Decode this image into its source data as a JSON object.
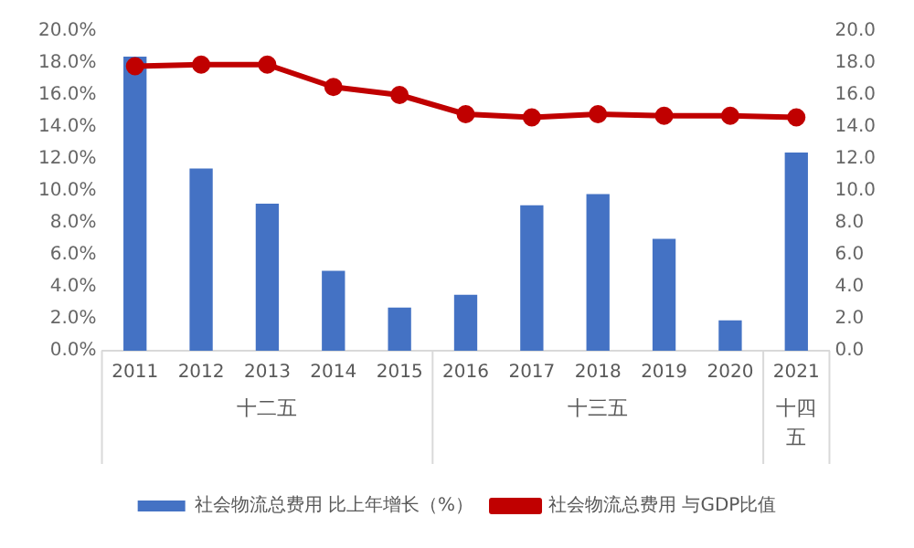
{
  "chart_data": {
    "type": "bar",
    "categories": [
      "2011",
      "2012",
      "2013",
      "2014",
      "2015",
      "2016",
      "2017",
      "2018",
      "2019",
      "2020",
      "2021"
    ],
    "series": [
      {
        "name": "社会物流总费用 比上年增长（%）",
        "color": "#4472c4",
        "values": [
          18.4,
          11.4,
          9.2,
          5.0,
          2.7,
          3.5,
          9.1,
          9.8,
          7.0,
          1.9,
          12.4
        ]
      },
      {
        "name": "社会物流总费用 与GDP比值",
        "type": "line",
        "axis": "y2",
        "color": "#c00000",
        "marker": "circle",
        "values": [
          17.8,
          17.9,
          17.9,
          16.5,
          16.0,
          14.8,
          14.6,
          14.8,
          14.7,
          14.7,
          14.6
        ]
      }
    ],
    "ylim": [
      0,
      20
    ],
    "yticks": [
      {
        "value": 0,
        "label": "0.0%"
      },
      {
        "value": 2,
        "label": "2.0%"
      },
      {
        "value": 4,
        "label": "4.0%"
      },
      {
        "value": 6,
        "label": "6.0%"
      },
      {
        "value": 8,
        "label": "8.0%"
      },
      {
        "value": 10,
        "label": "10.0%"
      },
      {
        "value": 12,
        "label": "12.0%"
      },
      {
        "value": 14,
        "label": "14.0%"
      },
      {
        "value": 16,
        "label": "16.0%"
      },
      {
        "value": 18,
        "label": "18.0%"
      },
      {
        "value": 20,
        "label": "20.0%"
      }
    ],
    "y2lim": [
      0,
      20
    ],
    "y2ticks": [
      {
        "value": 0,
        "label": "0.0"
      },
      {
        "value": 2,
        "label": "2.0"
      },
      {
        "value": 4,
        "label": "4.0"
      },
      {
        "value": 6,
        "label": "6.0"
      },
      {
        "value": 8,
        "label": "8.0"
      },
      {
        "value": 10,
        "label": "10.0"
      },
      {
        "value": 12,
        "label": "12.0"
      },
      {
        "value": 14,
        "label": "14.0"
      },
      {
        "value": 16,
        "label": "16.0"
      },
      {
        "value": 18,
        "label": "18.0"
      },
      {
        "value": 20,
        "label": "20.0"
      }
    ],
    "annotations": [
      "十二五",
      "十三五",
      "十四五"
    ],
    "grid": false,
    "legend": "bottom"
  }
}
